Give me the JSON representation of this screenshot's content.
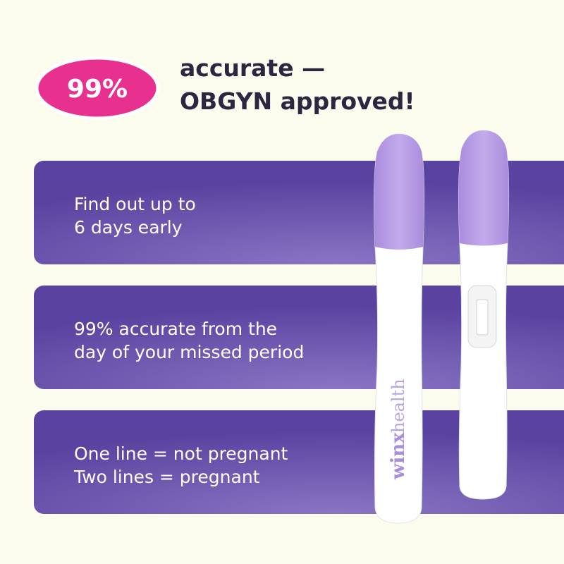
{
  "badge": {
    "text": "99%"
  },
  "headline": {
    "lines": [
      "accurate —",
      "OBGYN approved!"
    ]
  },
  "cards": [
    {
      "lines": [
        "Find out up to",
        "6 days early"
      ]
    },
    {
      "lines": [
        "99% accurate from the",
        "day of your missed period"
      ]
    },
    {
      "lines": [
        "One line = not pregnant",
        "Two lines = pregnant"
      ]
    }
  ],
  "brand": {
    "name": "winx",
    "suffix": "health"
  }
}
